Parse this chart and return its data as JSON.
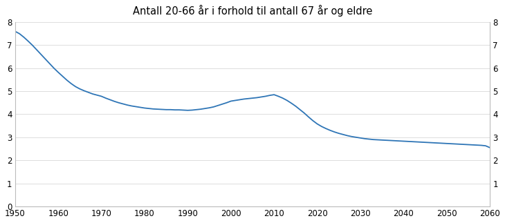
{
  "title": "Antall 20-66 år i forhold til antall 67 år og eldre",
  "line_color": "#2e75b6",
  "background_color": "#ffffff",
  "xlim": [
    1950,
    2060
  ],
  "ylim": [
    0,
    8
  ],
  "xticks": [
    1950,
    1960,
    1970,
    1980,
    1990,
    2000,
    2010,
    2020,
    2030,
    2040,
    2050,
    2060
  ],
  "yticks_left": [
    0,
    1,
    2,
    3,
    4,
    5,
    6,
    7,
    8
  ],
  "yticks_right": [
    1,
    2,
    3,
    4,
    5,
    6,
    7,
    8
  ],
  "x": [
    1950,
    1951,
    1952,
    1953,
    1954,
    1955,
    1956,
    1957,
    1958,
    1959,
    1960,
    1961,
    1962,
    1963,
    1964,
    1965,
    1966,
    1967,
    1968,
    1969,
    1970,
    1971,
    1972,
    1973,
    1974,
    1975,
    1976,
    1977,
    1978,
    1979,
    1980,
    1981,
    1982,
    1983,
    1984,
    1985,
    1986,
    1987,
    1988,
    1989,
    1990,
    1991,
    1992,
    1993,
    1994,
    1995,
    1996,
    1997,
    1998,
    1999,
    2000,
    2001,
    2002,
    2003,
    2004,
    2005,
    2006,
    2007,
    2008,
    2009,
    2010,
    2011,
    2012,
    2013,
    2014,
    2015,
    2016,
    2017,
    2018,
    2019,
    2020,
    2021,
    2022,
    2023,
    2024,
    2025,
    2026,
    2027,
    2028,
    2029,
    2030,
    2031,
    2032,
    2033,
    2034,
    2035,
    2036,
    2037,
    2038,
    2039,
    2040,
    2041,
    2042,
    2043,
    2044,
    2045,
    2046,
    2047,
    2048,
    2049,
    2050,
    2051,
    2052,
    2053,
    2054,
    2055,
    2056,
    2057,
    2058,
    2059,
    2060
  ],
  "y": [
    7.6,
    7.5,
    7.35,
    7.18,
    7.0,
    6.8,
    6.6,
    6.4,
    6.2,
    6.0,
    5.82,
    5.65,
    5.48,
    5.33,
    5.2,
    5.1,
    5.02,
    4.95,
    4.88,
    4.83,
    4.78,
    4.7,
    4.63,
    4.56,
    4.5,
    4.45,
    4.4,
    4.36,
    4.33,
    4.3,
    4.27,
    4.25,
    4.23,
    4.22,
    4.21,
    4.2,
    4.2,
    4.19,
    4.19,
    4.18,
    4.17,
    4.18,
    4.2,
    4.22,
    4.25,
    4.28,
    4.32,
    4.38,
    4.44,
    4.5,
    4.57,
    4.6,
    4.63,
    4.66,
    4.68,
    4.7,
    4.72,
    4.75,
    4.78,
    4.82,
    4.85,
    4.78,
    4.7,
    4.6,
    4.48,
    4.35,
    4.2,
    4.05,
    3.88,
    3.72,
    3.58,
    3.47,
    3.38,
    3.3,
    3.23,
    3.17,
    3.12,
    3.07,
    3.03,
    3.0,
    2.97,
    2.94,
    2.92,
    2.9,
    2.89,
    2.88,
    2.87,
    2.86,
    2.85,
    2.84,
    2.83,
    2.82,
    2.81,
    2.8,
    2.79,
    2.78,
    2.77,
    2.76,
    2.75,
    2.74,
    2.73,
    2.72,
    2.71,
    2.7,
    2.69,
    2.68,
    2.67,
    2.66,
    2.65,
    2.63,
    2.55
  ]
}
